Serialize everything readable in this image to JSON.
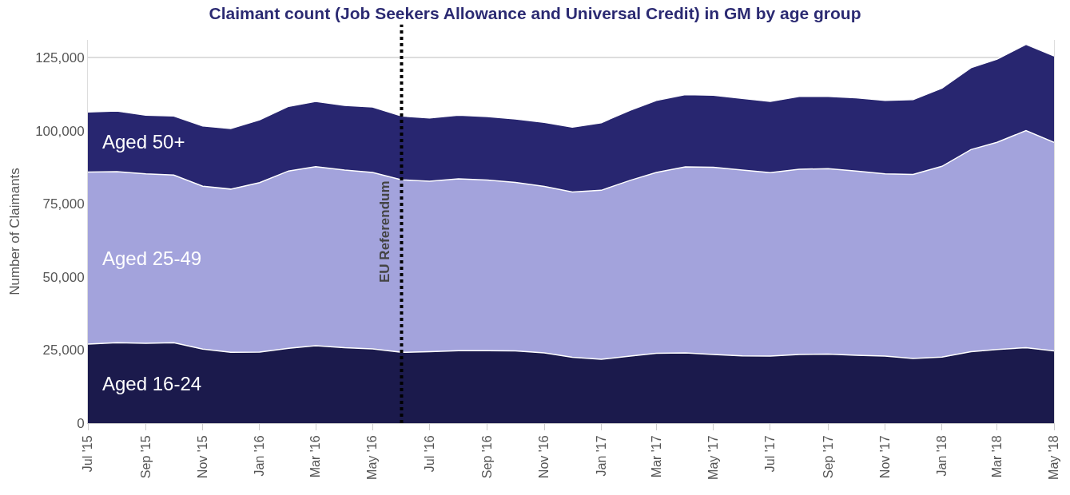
{
  "chart_data": {
    "type": "area",
    "stacked": true,
    "title": "Claimant count (Job Seekers Allowance and Universal Credit) in GM by age group",
    "ylabel": "Number of Claimants",
    "x": [
      "2015-07",
      "2015-08",
      "2015-09",
      "2015-10",
      "2015-11",
      "2015-12",
      "2016-01",
      "2016-02",
      "2016-03",
      "2016-04",
      "2016-05",
      "2016-06",
      "2016-07",
      "2016-08",
      "2016-09",
      "2016-10",
      "2016-11",
      "2016-12",
      "2017-01",
      "2017-02",
      "2017-03",
      "2017-04",
      "2017-05",
      "2017-06",
      "2017-07",
      "2017-08",
      "2017-09",
      "2017-10",
      "2017-11",
      "2017-12",
      "2018-01",
      "2018-02",
      "2018-03",
      "2018-04",
      "2018-05"
    ],
    "series": [
      {
        "name": "Aged 16-24",
        "color": "#1b1a4c",
        "values": [
          27000,
          27500,
          27300,
          27500,
          25300,
          24200,
          24300,
          25600,
          26500,
          25800,
          25400,
          24200,
          24400,
          24800,
          24800,
          24700,
          24000,
          22500,
          21800,
          22900,
          23900,
          24000,
          23500,
          23000,
          22900,
          23500,
          23600,
          23200,
          22900,
          22100,
          22600,
          24400,
          25200,
          25800,
          24700
        ]
      },
      {
        "name": "Aged 25-49",
        "color": "#a3a3dc",
        "values": [
          58800,
          58500,
          57900,
          57300,
          55700,
          55800,
          57900,
          60600,
          61200,
          60700,
          60300,
          59000,
          58300,
          58700,
          58300,
          57600,
          56900,
          56500,
          57800,
          60100,
          61800,
          63600,
          64000,
          63500,
          62700,
          63300,
          63400,
          63000,
          62300,
          62900,
          65200,
          69100,
          70800,
          74200,
          71300
        ]
      },
      {
        "name": "Aged 50+",
        "color": "#282670",
        "values": [
          20600,
          20700,
          20100,
          20200,
          20600,
          20700,
          21500,
          22100,
          22300,
          22100,
          22400,
          21800,
          21600,
          21800,
          21700,
          21700,
          21900,
          22200,
          23100,
          24000,
          24600,
          24700,
          24600,
          24500,
          24400,
          24900,
          24700,
          25000,
          25100,
          25600,
          26700,
          28000,
          28400,
          29500,
          29500
        ]
      }
    ],
    "xlim": [
      "2015-07",
      "2018-05"
    ],
    "xticks": [
      {
        "value": "2015-07",
        "label": "Jul '15"
      },
      {
        "value": "2015-09",
        "label": "Sep '15"
      },
      {
        "value": "2015-11",
        "label": "Nov '15"
      },
      {
        "value": "2016-01",
        "label": "Jan '16"
      },
      {
        "value": "2016-03",
        "label": "Mar '16"
      },
      {
        "value": "2016-05",
        "label": "May '16"
      },
      {
        "value": "2016-07",
        "label": "Jul '16"
      },
      {
        "value": "2016-09",
        "label": "Sep '16"
      },
      {
        "value": "2016-11",
        "label": "Nov '16"
      },
      {
        "value": "2017-01",
        "label": "Jan '17"
      },
      {
        "value": "2017-03",
        "label": "Mar '17"
      },
      {
        "value": "2017-05",
        "label": "May '17"
      },
      {
        "value": "2017-07",
        "label": "Jul '17"
      },
      {
        "value": "2017-09",
        "label": "Sep '17"
      },
      {
        "value": "2017-11",
        "label": "Nov '17"
      },
      {
        "value": "2018-01",
        "label": "Jan '18"
      },
      {
        "value": "2018-03",
        "label": "Mar '18"
      },
      {
        "value": "2018-05",
        "label": "May '18"
      }
    ],
    "ylim": [
      0,
      131000
    ],
    "yticks": [
      {
        "value": 0,
        "label": "0"
      },
      {
        "value": 25000,
        "label": "25,000"
      },
      {
        "value": 50000,
        "label": "50,000"
      },
      {
        "value": 75000,
        "label": "75,000"
      },
      {
        "value": 100000,
        "label": "100,000"
      },
      {
        "value": 125000,
        "label": "125,000"
      }
    ],
    "grid": "y",
    "legend": false,
    "ref_lines": [
      {
        "axis": "x",
        "value": "2016-06",
        "label": "EU Referendum",
        "color": "#000000",
        "line_style": "dotted"
      }
    ]
  }
}
